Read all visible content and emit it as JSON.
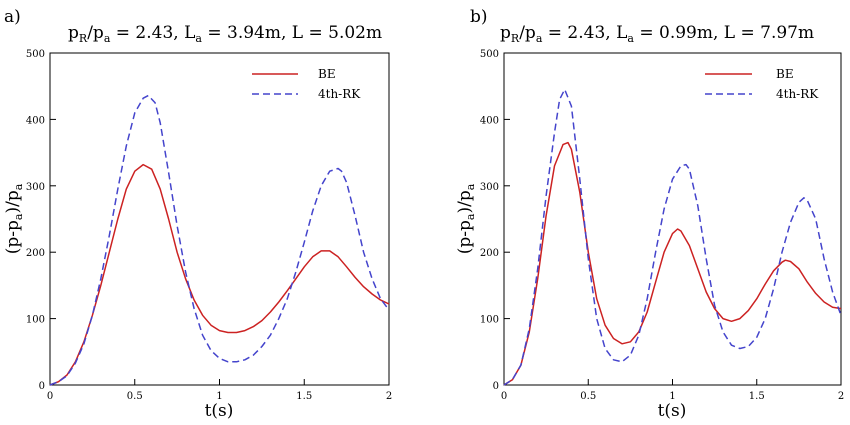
{
  "chart_data": [
    {
      "type": "line",
      "panel_label": "a)",
      "title": "p_R/p_a = 2.43, L_a = 3.94m, L = 5.02m",
      "title_parts": {
        "p": "p",
        "R": "R",
        "slash": "/",
        "pa": "p",
        "a": "a",
        "ratio": " = 2.43, ",
        "L1": "L",
        "a1": "a",
        "L1_value": " = 3.94m, ",
        "L2": "L = 5.02m"
      },
      "xlabel": "t(s)",
      "ylabel": "(p-p_a)/p_a",
      "ylabel_parts": {
        "main": "(p-p",
        "sub": "a",
        "mid": ")/p",
        "sub2": "a"
      },
      "xlim": [
        0,
        2
      ],
      "ylim": [
        0,
        500
      ],
      "xticks": [
        0,
        0.5,
        1,
        1.5,
        2
      ],
      "xtick_labels": [
        "0",
        "0.5",
        "1",
        "1.5",
        "2"
      ],
      "yticks": [
        0,
        100,
        200,
        300,
        400,
        500
      ],
      "ytick_labels": [
        "0",
        "100",
        "200",
        "300",
        "400",
        "500"
      ],
      "legend_position": "top-right",
      "series": [
        {
          "name": "BE",
          "color": "#cc2222",
          "dash": "solid",
          "x": [
            0,
            0.05,
            0.1,
            0.15,
            0.2,
            0.25,
            0.3,
            0.35,
            0.4,
            0.45,
            0.5,
            0.55,
            0.6,
            0.65,
            0.7,
            0.75,
            0.8,
            0.85,
            0.9,
            0.95,
            1.0,
            1.05,
            1.1,
            1.15,
            1.2,
            1.25,
            1.3,
            1.35,
            1.4,
            1.45,
            1.5,
            1.55,
            1.6,
            1.65,
            1.7,
            1.75,
            1.8,
            1.85,
            1.9,
            1.95,
            2.0
          ],
          "y": [
            0,
            5,
            15,
            35,
            65,
            105,
            150,
            200,
            250,
            295,
            322,
            332,
            325,
            295,
            250,
            200,
            160,
            128,
            105,
            90,
            82,
            79,
            79,
            82,
            88,
            97,
            110,
            125,
            142,
            160,
            178,
            193,
            202,
            202,
            193,
            178,
            162,
            148,
            137,
            128,
            122
          ]
        },
        {
          "name": "4th-RK",
          "color": "#4444cc",
          "dash": "dashed",
          "x": [
            0,
            0.05,
            0.1,
            0.15,
            0.2,
            0.25,
            0.3,
            0.35,
            0.4,
            0.45,
            0.5,
            0.55,
            0.58,
            0.62,
            0.65,
            0.7,
            0.75,
            0.8,
            0.85,
            0.9,
            0.95,
            1.0,
            1.05,
            1.1,
            1.15,
            1.2,
            1.25,
            1.3,
            1.35,
            1.4,
            1.45,
            1.5,
            1.55,
            1.6,
            1.65,
            1.7,
            1.72,
            1.75,
            1.8,
            1.85,
            1.9,
            1.95,
            2.0
          ],
          "y": [
            0,
            5,
            14,
            33,
            62,
            105,
            160,
            225,
            295,
            360,
            410,
            432,
            436,
            425,
            395,
            320,
            240,
            170,
            115,
            75,
            52,
            40,
            35,
            35,
            38,
            45,
            58,
            75,
            100,
            130,
            170,
            215,
            262,
            300,
            322,
            326,
            322,
            305,
            255,
            200,
            160,
            130,
            113
          ]
        }
      ]
    },
    {
      "type": "line",
      "panel_label": "b)",
      "title": "p_R/p_a = 2.43, L_a = 0.99m, L = 7.97m",
      "title_parts": {
        "p": "p",
        "R": "R",
        "slash": "/",
        "pa": "p",
        "a": "a",
        "ratio": " = 2.43, ",
        "L1": "L",
        "a1": "a",
        "L1_value": " = 0.99m, ",
        "L2": "L = 7.97m"
      },
      "xlabel": "t(s)",
      "ylabel": "(p-p_a)/p_a",
      "ylabel_parts": {
        "main": "(p-p",
        "sub": "a",
        "mid": ")/p",
        "sub2": "a"
      },
      "xlim": [
        0,
        2
      ],
      "ylim": [
        0,
        500
      ],
      "xticks": [
        0,
        0.5,
        1,
        1.5,
        2
      ],
      "xtick_labels": [
        "0",
        "0.5",
        "1",
        "1.5",
        "2"
      ],
      "yticks": [
        0,
        100,
        200,
        300,
        400,
        500
      ],
      "ytick_labels": [
        "0",
        "100",
        "200",
        "300",
        "400",
        "500"
      ],
      "legend_position": "top-right",
      "series": [
        {
          "name": "BE",
          "color": "#cc2222",
          "dash": "solid",
          "x": [
            0,
            0.05,
            0.1,
            0.15,
            0.2,
            0.25,
            0.3,
            0.35,
            0.38,
            0.4,
            0.45,
            0.5,
            0.55,
            0.6,
            0.65,
            0.7,
            0.75,
            0.8,
            0.85,
            0.9,
            0.95,
            1.0,
            1.03,
            1.05,
            1.1,
            1.15,
            1.2,
            1.25,
            1.3,
            1.35,
            1.4,
            1.45,
            1.5,
            1.55,
            1.6,
            1.65,
            1.67,
            1.7,
            1.75,
            1.8,
            1.85,
            1.9,
            1.95,
            2.0
          ],
          "y": [
            0,
            8,
            30,
            80,
            160,
            255,
            330,
            362,
            365,
            355,
            290,
            200,
            130,
            90,
            70,
            62,
            65,
            80,
            110,
            155,
            200,
            228,
            235,
            232,
            210,
            175,
            140,
            115,
            100,
            96,
            100,
            112,
            130,
            152,
            172,
            185,
            188,
            186,
            175,
            155,
            138,
            125,
            117,
            115
          ]
        },
        {
          "name": "4th-RK",
          "color": "#4444cc",
          "dash": "dashed",
          "x": [
            0,
            0.05,
            0.1,
            0.15,
            0.2,
            0.25,
            0.3,
            0.33,
            0.36,
            0.4,
            0.45,
            0.5,
            0.55,
            0.6,
            0.65,
            0.7,
            0.75,
            0.8,
            0.85,
            0.9,
            0.95,
            1.0,
            1.05,
            1.08,
            1.1,
            1.15,
            1.2,
            1.25,
            1.3,
            1.35,
            1.4,
            1.45,
            1.5,
            1.55,
            1.6,
            1.65,
            1.7,
            1.75,
            1.78,
            1.8,
            1.85,
            1.9,
            1.95,
            2.0
          ],
          "y": [
            0,
            8,
            30,
            85,
            175,
            285,
            380,
            430,
            445,
            420,
            310,
            190,
            100,
            55,
            38,
            35,
            45,
            75,
            130,
            200,
            265,
            310,
            330,
            332,
            325,
            270,
            190,
            120,
            80,
            60,
            55,
            58,
            72,
            100,
            145,
            200,
            245,
            275,
            282,
            278,
            250,
            190,
            140,
            105
          ]
        }
      ]
    }
  ]
}
